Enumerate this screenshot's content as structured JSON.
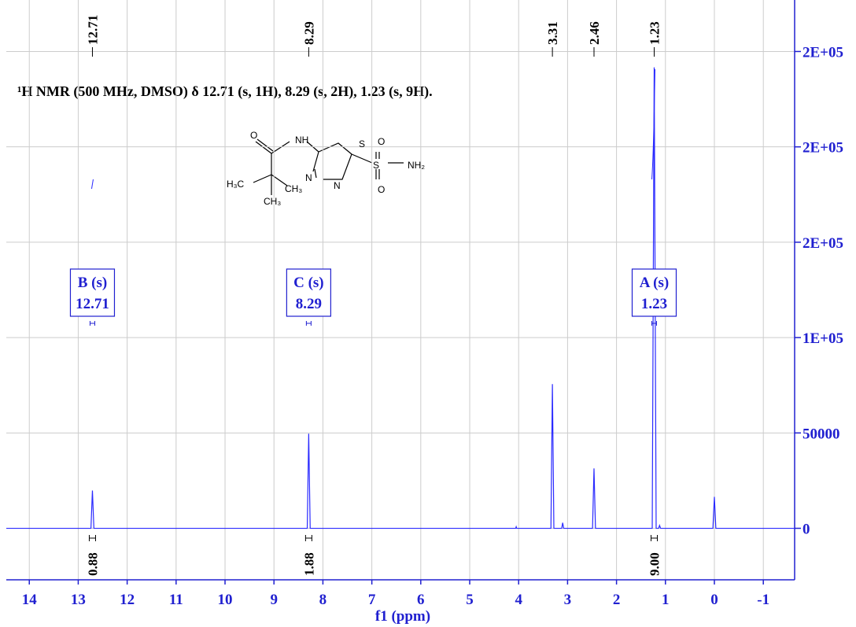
{
  "chart_data": {
    "type": "line",
    "title": "¹H NMR (500 MHz, DMSO) δ 12.71 (s, 1H), 8.29 (s, 2H), 1.23 (s, 9H).",
    "xlabel": "f1 (ppm)",
    "xlim": [
      14.47,
      -1.64
    ],
    "ylim": [
      -27000,
      277000
    ],
    "xticks": [
      14,
      13,
      12,
      11,
      10,
      9,
      8,
      7,
      6,
      5,
      4,
      3,
      2,
      1,
      0,
      -1
    ],
    "yticks": [
      {
        "value": 250000,
        "label": "2E+05"
      },
      {
        "value": 200000,
        "label": "2E+05"
      },
      {
        "value": 150000,
        "label": "2E+05"
      },
      {
        "value": 100000,
        "label": "1E+05"
      },
      50000,
      0
    ],
    "grid": true,
    "color": "#2a2aff",
    "x": [
      14.47,
      12.74,
      12.71,
      12.68,
      8.32,
      8.29,
      8.26,
      4.06,
      4.05,
      4.04,
      3.34,
      3.31,
      3.28,
      3.12,
      3.1,
      3.08,
      2.49,
      2.46,
      2.43,
      1.27,
      1.23,
      1.19,
      1.14,
      1.12,
      1.1,
      0.03,
      0.0,
      -0.03,
      -1.64
    ],
    "values": [
      0,
      0,
      19800,
      0,
      0,
      49600,
      0,
      0,
      800,
      0,
      0,
      75600,
      0,
      0,
      2900,
      0,
      0,
      31400,
      0,
      0,
      241700,
      0,
      0,
      1500,
      0,
      0,
      16500,
      0,
      0
    ],
    "peak_labels": [
      12.71,
      8.29,
      3.31,
      2.46,
      1.23
    ],
    "multiplets": [
      {
        "label": "B (s)",
        "shift": 12.71,
        "integral": 0.88
      },
      {
        "label": "C (s)",
        "shift": 8.29,
        "integral": 1.88
      },
      {
        "label": "A (s)",
        "shift": 1.23,
        "integral": {
          "value": 9,
          "label": "9.00"
        }
      }
    ],
    "structure_labels": [
      "O",
      "NH",
      "S",
      "O",
      "S",
      "NH₂",
      "O",
      "H₃C",
      "CH₃",
      "CH₃",
      "N",
      "N"
    ]
  }
}
